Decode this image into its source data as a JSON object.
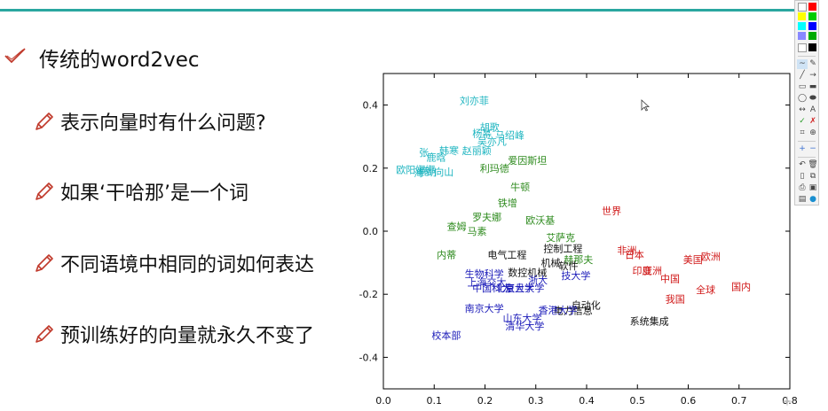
{
  "slide": {
    "title": "传统的word2vec",
    "bullets": [
      "表示向量时有什么问题?",
      "如果‘干哈那’是一个词",
      "不同语境中相同的词如何表达",
      "预训练好的向量就永久不变了"
    ]
  },
  "colors": {
    "accent": "#2aa7a0",
    "check": "#c0392b",
    "pencil": "#c0392b",
    "cyan_cluster": "#1fb5c0",
    "green_cluster": "#2e8b1e",
    "black_cluster": "#111111",
    "blue_cluster": "#1a1ab8",
    "red_cluster": "#d01818"
  },
  "icons": {
    "title": "checkmark-icon",
    "bullet": "pencil-icon",
    "cursor": "mouse-pointer-icon"
  },
  "chart_data": {
    "type": "scatter",
    "xlim": [
      0.0,
      0.8
    ],
    "ylim": [
      -0.5,
      0.5
    ],
    "xticks": [
      "0.0",
      "0.1",
      "0.2",
      "0.3",
      "0.4",
      "0.5",
      "0.6",
      "0.7",
      "0.8"
    ],
    "yticks": [
      "0.4",
      "0.2",
      "0.0",
      "-0.2",
      "-0.4"
    ],
    "xtick_values": [
      0.0,
      0.1,
      0.2,
      0.3,
      0.4,
      0.5,
      0.6,
      0.7,
      0.8
    ],
    "ytick_values": [
      0.4,
      0.2,
      0.0,
      -0.2,
      -0.4
    ],
    "grid": false,
    "points": [
      {
        "label": "刘亦菲",
        "x": 0.15,
        "y": 0.415,
        "group": "cyan"
      },
      {
        "label": "胡歌",
        "x": 0.19,
        "y": 0.33,
        "group": "cyan"
      },
      {
        "label": "杨幂",
        "x": 0.175,
        "y": 0.31,
        "group": "cyan"
      },
      {
        "label": "马绍峰",
        "x": 0.22,
        "y": 0.305,
        "group": "cyan"
      },
      {
        "label": "吴亦凡",
        "x": 0.185,
        "y": 0.285,
        "group": "cyan"
      },
      {
        "label": "张",
        "x": 0.07,
        "y": 0.25,
        "group": "cyan"
      },
      {
        "label": "韩寒",
        "x": 0.11,
        "y": 0.255,
        "group": "cyan"
      },
      {
        "label": "赵丽颖",
        "x": 0.155,
        "y": 0.255,
        "group": "cyan"
      },
      {
        "label": "鹿晗",
        "x": 0.085,
        "y": 0.235,
        "group": "cyan"
      },
      {
        "label": "欧阳娜娜",
        "x": 0.025,
        "y": 0.195,
        "group": "cyan"
      },
      {
        "label": "鹿",
        "x": 0.07,
        "y": 0.19,
        "group": "cyan"
      },
      {
        "label": "海",
        "x": 0.06,
        "y": 0.185,
        "group": "cyan"
      },
      {
        "label": "胡",
        "x": 0.085,
        "y": 0.188,
        "group": "cyan"
      },
      {
        "label": "向山",
        "x": 0.1,
        "y": 0.188,
        "group": "cyan"
      },
      {
        "label": "爱因斯坦",
        "x": 0.245,
        "y": 0.225,
        "group": "green"
      },
      {
        "label": "利玛德",
        "x": 0.19,
        "y": 0.2,
        "group": "green"
      },
      {
        "label": "牛顿",
        "x": 0.25,
        "y": 0.14,
        "group": "green"
      },
      {
        "label": "铁增",
        "x": 0.225,
        "y": 0.09,
        "group": "green"
      },
      {
        "label": "罗夫娜",
        "x": 0.175,
        "y": 0.045,
        "group": "green"
      },
      {
        "label": "欧沃基",
        "x": 0.28,
        "y": 0.035,
        "group": "green"
      },
      {
        "label": "查姆",
        "x": 0.125,
        "y": 0.015,
        "group": "green"
      },
      {
        "label": "马素",
        "x": 0.165,
        "y": 0.0,
        "group": "green"
      },
      {
        "label": "艾萨克",
        "x": 0.32,
        "y": -0.02,
        "group": "green"
      },
      {
        "label": "内蒂",
        "x": 0.105,
        "y": -0.075,
        "group": "green"
      },
      {
        "label": "赫那夫",
        "x": 0.355,
        "y": -0.09,
        "group": "green"
      },
      {
        "label": "电气工程",
        "x": 0.205,
        "y": -0.075,
        "group": "black"
      },
      {
        "label": "控制工程",
        "x": 0.315,
        "y": -0.055,
        "group": "black"
      },
      {
        "label": "机械",
        "x": 0.31,
        "y": -0.1,
        "group": "black"
      },
      {
        "label": "数控机械",
        "x": 0.245,
        "y": -0.13,
        "group": "black"
      },
      {
        "label": "软件",
        "x": 0.345,
        "y": -0.11,
        "group": "black"
      },
      {
        "label": "自动化",
        "x": 0.37,
        "y": -0.235,
        "group": "black"
      },
      {
        "label": "电力信息",
        "x": 0.335,
        "y": -0.252,
        "group": "black"
      },
      {
        "label": "系统集成",
        "x": 0.485,
        "y": -0.285,
        "group": "black"
      },
      {
        "label": "生物科学",
        "x": 0.16,
        "y": -0.135,
        "group": "blue"
      },
      {
        "label": "上海交大",
        "x": 0.165,
        "y": -0.162,
        "group": "blue"
      },
      {
        "label": "中国科大",
        "x": 0.175,
        "y": -0.18,
        "group": "blue"
      },
      {
        "label": "北京大学",
        "x": 0.22,
        "y": -0.18,
        "group": "blue"
      },
      {
        "label": "复旦大学",
        "x": 0.24,
        "y": -0.18,
        "group": "blue"
      },
      {
        "label": "浙大",
        "x": 0.285,
        "y": -0.155,
        "group": "blue"
      },
      {
        "label": "技大学",
        "x": 0.35,
        "y": -0.14,
        "group": "blue"
      },
      {
        "label": "南京大学",
        "x": 0.16,
        "y": -0.245,
        "group": "blue"
      },
      {
        "label": "山东大学",
        "x": 0.235,
        "y": -0.275,
        "group": "blue"
      },
      {
        "label": "清华大学",
        "x": 0.24,
        "y": -0.3,
        "group": "blue"
      },
      {
        "label": "香港大学",
        "x": 0.305,
        "y": -0.25,
        "group": "blue"
      },
      {
        "label": "校本部",
        "x": 0.095,
        "y": -0.33,
        "group": "blue"
      },
      {
        "label": "世界",
        "x": 0.43,
        "y": 0.065,
        "group": "red"
      },
      {
        "label": "非洲",
        "x": 0.46,
        "y": -0.06,
        "group": "red"
      },
      {
        "label": "日本",
        "x": 0.475,
        "y": -0.075,
        "group": "red"
      },
      {
        "label": "美国",
        "x": 0.59,
        "y": -0.09,
        "group": "red"
      },
      {
        "label": "欧洲",
        "x": 0.625,
        "y": -0.08,
        "group": "red"
      },
      {
        "label": "印度",
        "x": 0.49,
        "y": -0.125,
        "group": "red"
      },
      {
        "label": "亚洲",
        "x": 0.51,
        "y": -0.125,
        "group": "red"
      },
      {
        "label": "中国",
        "x": 0.545,
        "y": -0.15,
        "group": "red"
      },
      {
        "label": "全球",
        "x": 0.615,
        "y": -0.185,
        "group": "red"
      },
      {
        "label": "国内",
        "x": 0.685,
        "y": -0.175,
        "group": "red"
      },
      {
        "label": "我国",
        "x": 0.555,
        "y": -0.215,
        "group": "red"
      }
    ]
  }
}
